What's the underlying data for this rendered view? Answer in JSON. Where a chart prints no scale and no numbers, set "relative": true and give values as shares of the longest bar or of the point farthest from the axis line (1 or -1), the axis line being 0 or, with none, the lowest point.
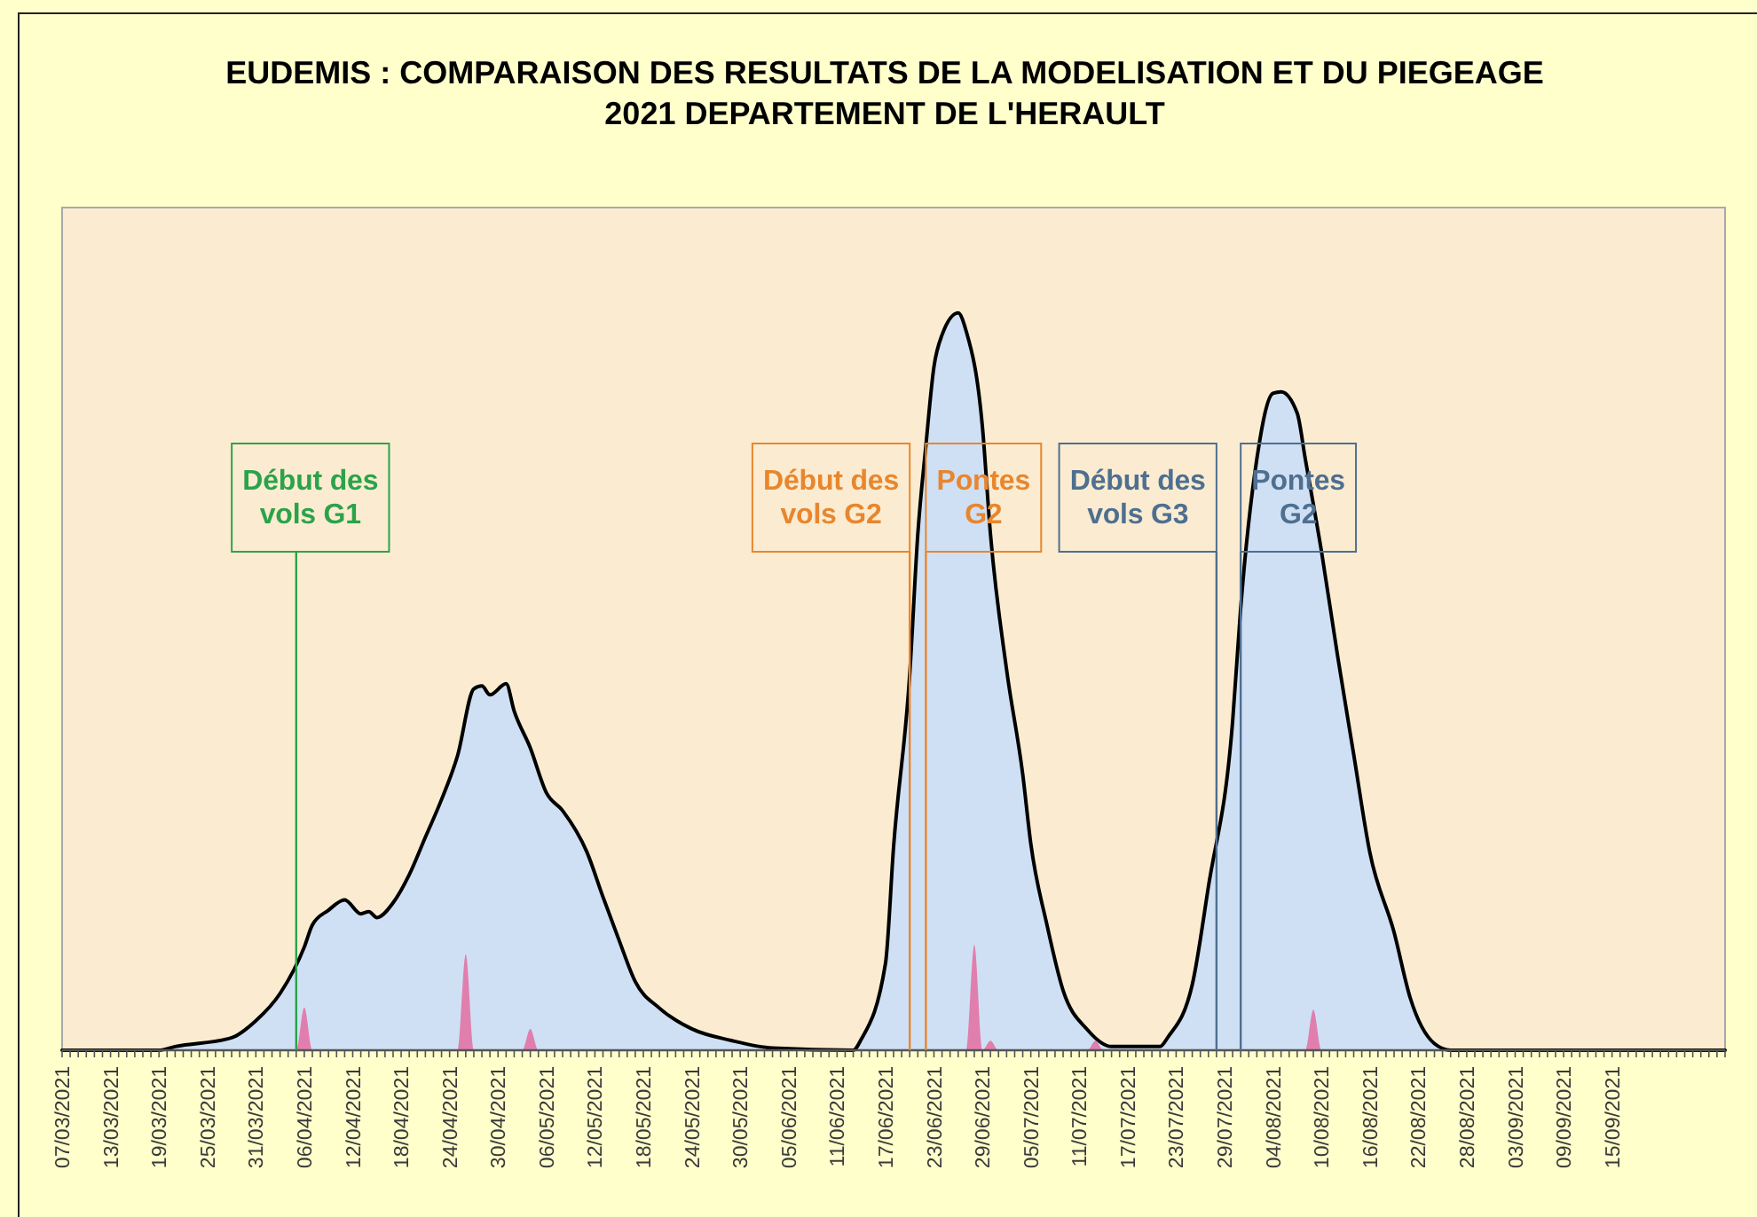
{
  "chart_data": {
    "type": "area",
    "relative": true,
    "title": "EUDEMIS : COMPARAISON DES RESULTATS DE LA MODELISATION ET DU PIEGEAGE",
    "subtitle": "2021 DEPARTEMENT DE L'HERAULT",
    "xlim": [
      "2021-03-07",
      "2021-09-29"
    ],
    "xticks": [
      {
        "value": "2021-03-07",
        "label": "07/03/2021"
      },
      {
        "value": "2021-03-08",
        "label": null
      },
      {
        "value": "2021-03-09",
        "label": null
      },
      {
        "value": "2021-03-10",
        "label": null
      },
      {
        "value": "2021-03-11",
        "label": null
      },
      {
        "value": "2021-03-12",
        "label": null
      },
      {
        "value": "2021-03-13",
        "label": "13/03/2021"
      },
      {
        "value": "2021-03-14",
        "label": null
      },
      {
        "value": "2021-03-15",
        "label": null
      },
      {
        "value": "2021-03-16",
        "label": null
      },
      {
        "value": "2021-03-17",
        "label": null
      },
      {
        "value": "2021-03-18",
        "label": null
      },
      {
        "value": "2021-03-19",
        "label": "19/03/2021"
      },
      {
        "value": "2021-03-20",
        "label": null
      },
      {
        "value": "2021-03-21",
        "label": null
      },
      {
        "value": "2021-03-22",
        "label": null
      },
      {
        "value": "2021-03-23",
        "label": null
      },
      {
        "value": "2021-03-24",
        "label": null
      },
      {
        "value": "2021-03-25",
        "label": "25/03/2021"
      },
      {
        "value": "2021-03-26",
        "label": null
      },
      {
        "value": "2021-03-27",
        "label": null
      },
      {
        "value": "2021-03-28",
        "label": null
      },
      {
        "value": "2021-03-29",
        "label": null
      },
      {
        "value": "2021-03-30",
        "label": null
      },
      {
        "value": "2021-03-31",
        "label": "31/03/2021"
      },
      {
        "value": "2021-04-01",
        "label": null
      },
      {
        "value": "2021-04-02",
        "label": null
      },
      {
        "value": "2021-04-03",
        "label": null
      },
      {
        "value": "2021-04-04",
        "label": null
      },
      {
        "value": "2021-04-05",
        "label": null
      },
      {
        "value": "2021-04-06",
        "label": "06/04/2021"
      },
      {
        "value": "2021-04-07",
        "label": null
      },
      {
        "value": "2021-04-08",
        "label": null
      },
      {
        "value": "2021-04-09",
        "label": null
      },
      {
        "value": "2021-04-10",
        "label": null
      },
      {
        "value": "2021-04-11",
        "label": null
      },
      {
        "value": "2021-04-12",
        "label": "12/04/2021"
      },
      {
        "value": "2021-04-13",
        "label": null
      },
      {
        "value": "2021-04-14",
        "label": null
      },
      {
        "value": "2021-04-15",
        "label": null
      },
      {
        "value": "2021-04-16",
        "label": null
      },
      {
        "value": "2021-04-17",
        "label": null
      },
      {
        "value": "2021-04-18",
        "label": "18/04/2021"
      },
      {
        "value": "2021-04-19",
        "label": null
      },
      {
        "value": "2021-04-20",
        "label": null
      },
      {
        "value": "2021-04-21",
        "label": null
      },
      {
        "value": "2021-04-22",
        "label": null
      },
      {
        "value": "2021-04-23",
        "label": null
      },
      {
        "value": "2021-04-24",
        "label": "24/04/2021"
      },
      {
        "value": "2021-04-25",
        "label": null
      },
      {
        "value": "2021-04-26",
        "label": null
      },
      {
        "value": "2021-04-27",
        "label": null
      },
      {
        "value": "2021-04-28",
        "label": null
      },
      {
        "value": "2021-04-29",
        "label": null
      },
      {
        "value": "2021-04-30",
        "label": "30/04/2021"
      },
      {
        "value": "2021-05-01",
        "label": null
      },
      {
        "value": "2021-05-02",
        "label": null
      },
      {
        "value": "2021-05-03",
        "label": null
      },
      {
        "value": "2021-05-04",
        "label": null
      },
      {
        "value": "2021-05-05",
        "label": null
      },
      {
        "value": "2021-05-06",
        "label": "06/05/2021"
      },
      {
        "value": "2021-05-07",
        "label": null
      },
      {
        "value": "2021-05-08",
        "label": null
      },
      {
        "value": "2021-05-09",
        "label": null
      },
      {
        "value": "2021-05-10",
        "label": null
      },
      {
        "value": "2021-05-11",
        "label": null
      },
      {
        "value": "2021-05-12",
        "label": "12/05/2021"
      },
      {
        "value": "2021-05-13",
        "label": null
      },
      {
        "value": "2021-05-14",
        "label": null
      },
      {
        "value": "2021-05-15",
        "label": null
      },
      {
        "value": "2021-05-16",
        "label": null
      },
      {
        "value": "2021-05-17",
        "label": null
      },
      {
        "value": "2021-05-18",
        "label": "18/05/2021"
      },
      {
        "value": "2021-05-19",
        "label": null
      },
      {
        "value": "2021-05-20",
        "label": null
      },
      {
        "value": "2021-05-21",
        "label": null
      },
      {
        "value": "2021-05-22",
        "label": null
      },
      {
        "value": "2021-05-23",
        "label": null
      },
      {
        "value": "2021-05-24",
        "label": "24/05/2021"
      },
      {
        "value": "2021-05-25",
        "label": null
      },
      {
        "value": "2021-05-26",
        "label": null
      },
      {
        "value": "2021-05-27",
        "label": null
      },
      {
        "value": "2021-05-28",
        "label": null
      },
      {
        "value": "2021-05-29",
        "label": null
      },
      {
        "value": "2021-05-30",
        "label": "30/05/2021"
      },
      {
        "value": "2021-05-31",
        "label": null
      },
      {
        "value": "2021-06-01",
        "label": null
      },
      {
        "value": "2021-06-02",
        "label": null
      },
      {
        "value": "2021-06-03",
        "label": null
      },
      {
        "value": "2021-06-04",
        "label": null
      },
      {
        "value": "2021-06-05",
        "label": "05/06/2021"
      },
      {
        "value": "2021-06-06",
        "label": null
      },
      {
        "value": "2021-06-07",
        "label": null
      },
      {
        "value": "2021-06-08",
        "label": null
      },
      {
        "value": "2021-06-09",
        "label": null
      },
      {
        "value": "2021-06-10",
        "label": null
      },
      {
        "value": "2021-06-11",
        "label": "11/06/2021"
      },
      {
        "value": "2021-06-12",
        "label": null
      },
      {
        "value": "2021-06-13",
        "label": null
      },
      {
        "value": "2021-06-14",
        "label": null
      },
      {
        "value": "2021-06-15",
        "label": null
      },
      {
        "value": "2021-06-16",
        "label": null
      },
      {
        "value": "2021-06-17",
        "label": "17/06/2021"
      },
      {
        "value": "2021-06-18",
        "label": null
      },
      {
        "value": "2021-06-19",
        "label": null
      },
      {
        "value": "2021-06-20",
        "label": null
      },
      {
        "value": "2021-06-21",
        "label": null
      },
      {
        "value": "2021-06-22",
        "label": null
      },
      {
        "value": "2021-06-23",
        "label": "23/06/2021"
      },
      {
        "value": "2021-06-24",
        "label": null
      },
      {
        "value": "2021-06-25",
        "label": null
      },
      {
        "value": "2021-06-26",
        "label": null
      },
      {
        "value": "2021-06-27",
        "label": null
      },
      {
        "value": "2021-06-28",
        "label": null
      },
      {
        "value": "2021-06-29",
        "label": "29/06/2021"
      },
      {
        "value": "2021-06-30",
        "label": null
      },
      {
        "value": "2021-07-01",
        "label": null
      },
      {
        "value": "2021-07-02",
        "label": null
      },
      {
        "value": "2021-07-03",
        "label": null
      },
      {
        "value": "2021-07-04",
        "label": null
      },
      {
        "value": "2021-07-05",
        "label": "05/07/2021"
      },
      {
        "value": "2021-07-06",
        "label": null
      },
      {
        "value": "2021-07-07",
        "label": null
      },
      {
        "value": "2021-07-08",
        "label": null
      },
      {
        "value": "2021-07-09",
        "label": null
      },
      {
        "value": "2021-07-10",
        "label": null
      },
      {
        "value": "2021-07-11",
        "label": "11/07/2021"
      },
      {
        "value": "2021-07-12",
        "label": null
      },
      {
        "value": "2021-07-13",
        "label": null
      },
      {
        "value": "2021-07-14",
        "label": null
      },
      {
        "value": "2021-07-15",
        "label": null
      },
      {
        "value": "2021-07-16",
        "label": null
      },
      {
        "value": "2021-07-17",
        "label": "17/07/2021"
      },
      {
        "value": "2021-07-18",
        "label": null
      },
      {
        "value": "2021-07-19",
        "label": null
      },
      {
        "value": "2021-07-20",
        "label": null
      },
      {
        "value": "2021-07-21",
        "label": null
      },
      {
        "value": "2021-07-22",
        "label": null
      },
      {
        "value": "2021-07-23",
        "label": "23/07/2021"
      },
      {
        "value": "2021-07-24",
        "label": null
      },
      {
        "value": "2021-07-25",
        "label": null
      },
      {
        "value": "2021-07-26",
        "label": null
      },
      {
        "value": "2021-07-27",
        "label": null
      },
      {
        "value": "2021-07-28",
        "label": null
      },
      {
        "value": "2021-07-29",
        "label": "29/07/2021"
      },
      {
        "value": "2021-07-30",
        "label": null
      },
      {
        "value": "2021-07-31",
        "label": null
      },
      {
        "value": "2021-08-01",
        "label": null
      },
      {
        "value": "2021-08-02",
        "label": null
      },
      {
        "value": "2021-08-03",
        "label": null
      },
      {
        "value": "2021-08-04",
        "label": "04/08/2021"
      },
      {
        "value": "2021-08-05",
        "label": null
      },
      {
        "value": "2021-08-06",
        "label": null
      },
      {
        "value": "2021-08-07",
        "label": null
      },
      {
        "value": "2021-08-08",
        "label": null
      },
      {
        "value": "2021-08-09",
        "label": null
      },
      {
        "value": "2021-08-10",
        "label": "10/08/2021"
      },
      {
        "value": "2021-08-11",
        "label": null
      },
      {
        "value": "2021-08-12",
        "label": null
      },
      {
        "value": "2021-08-13",
        "label": null
      },
      {
        "value": "2021-08-14",
        "label": null
      },
      {
        "value": "2021-08-15",
        "label": null
      },
      {
        "value": "2021-08-16",
        "label": "16/08/2021"
      },
      {
        "value": "2021-08-17",
        "label": null
      },
      {
        "value": "2021-08-18",
        "label": null
      },
      {
        "value": "2021-08-19",
        "label": null
      },
      {
        "value": "2021-08-20",
        "label": null
      },
      {
        "value": "2021-08-21",
        "label": null
      },
      {
        "value": "2021-08-22",
        "label": "22/08/2021"
      },
      {
        "value": "2021-08-23",
        "label": null
      },
      {
        "value": "2021-08-24",
        "label": null
      },
      {
        "value": "2021-08-25",
        "label": null
      },
      {
        "value": "2021-08-26",
        "label": null
      },
      {
        "value": "2021-08-27",
        "label": null
      },
      {
        "value": "2021-08-28",
        "label": "28/08/2021"
      },
      {
        "value": "2021-08-29",
        "label": null
      },
      {
        "value": "2021-08-30",
        "label": null
      },
      {
        "value": "2021-08-31",
        "label": null
      },
      {
        "value": "2021-09-01",
        "label": null
      },
      {
        "value": "2021-09-02",
        "label": null
      },
      {
        "value": "2021-09-03",
        "label": "03/09/2021"
      },
      {
        "value": "2021-09-04",
        "label": null
      },
      {
        "value": "2021-09-05",
        "label": null
      },
      {
        "value": "2021-09-06",
        "label": null
      },
      {
        "value": "2021-09-07",
        "label": null
      },
      {
        "value": "2021-09-08",
        "label": null
      },
      {
        "value": "2021-09-09",
        "label": "09/09/2021"
      },
      {
        "value": "2021-09-10",
        "label": null
      },
      {
        "value": "2021-09-11",
        "label": null
      },
      {
        "value": "2021-09-12",
        "label": null
      },
      {
        "value": "2021-09-13",
        "label": null
      },
      {
        "value": "2021-09-14",
        "label": null
      },
      {
        "value": "2021-09-15",
        "label": "15/09/2021"
      },
      {
        "value": "2021-09-16",
        "label": null
      },
      {
        "value": "2021-09-17",
        "label": null
      },
      {
        "value": "2021-09-18",
        "label": null
      },
      {
        "value": "2021-09-19",
        "label": null
      },
      {
        "value": "2021-09-20",
        "label": null
      },
      {
        "value": "2021-09-21",
        "label": null
      },
      {
        "value": "2021-09-22",
        "label": null
      },
      {
        "value": "2021-09-23",
        "label": null
      },
      {
        "value": "2021-09-24",
        "label": null
      },
      {
        "value": "2021-09-25",
        "label": null
      },
      {
        "value": "2021-09-26",
        "label": null
      },
      {
        "value": "2021-09-27",
        "label": null
      },
      {
        "value": "2021-09-28",
        "label": null
      },
      {
        "value": "2021-09-29",
        "label": null
      }
    ],
    "series": [
      {
        "color": "#cfe0f4",
        "line_style": "solid",
        "x": [
          "2021-03-07",
          "2021-03-19",
          "2021-03-21",
          "2021-03-28",
          "2021-03-31",
          "2021-04-03",
          "2021-04-06",
          "2021-04-07",
          "2021-04-09",
          "2021-04-11",
          "2021-04-13",
          "2021-04-14",
          "2021-04-15",
          "2021-04-17",
          "2021-04-19",
          "2021-04-21",
          "2021-04-23",
          "2021-04-25",
          "2021-04-27",
          "2021-04-28",
          "2021-04-29",
          "2021-05-01",
          "2021-05-02",
          "2021-05-04",
          "2021-05-06",
          "2021-05-08",
          "2021-05-11",
          "2021-05-13",
          "2021-05-15",
          "2021-05-17",
          "2021-05-20",
          "2021-05-24",
          "2021-05-29",
          "2021-06-03",
          "2021-06-13",
          "2021-06-14",
          "2021-06-17",
          "2021-06-18",
          "2021-06-20",
          "2021-06-21",
          "2021-06-22",
          "2021-06-23",
          "2021-06-24",
          "2021-06-26",
          "2021-06-27",
          "2021-06-29",
          "2021-06-30",
          "2021-07-02",
          "2021-07-04",
          "2021-07-05",
          "2021-07-07",
          "2021-07-09",
          "2021-07-12",
          "2021-07-15",
          "2021-07-21",
          "2021-07-22",
          "2021-07-25",
          "2021-07-27",
          "2021-07-30",
          "2021-07-31",
          "2021-08-02",
          "2021-08-04",
          "2021-08-05",
          "2021-08-07",
          "2021-08-08",
          "2021-08-10",
          "2021-08-12",
          "2021-08-14",
          "2021-08-16",
          "2021-08-19",
          "2021-08-21",
          "2021-08-24",
          "2021-08-26",
          "2021-09-29"
        ],
        "values": [
          0,
          0,
          0.005,
          0.017,
          0.04,
          0.077,
          0.14,
          0.17,
          0.19,
          0.204,
          0.185,
          0.188,
          0.18,
          0.2,
          0.238,
          0.289,
          0.34,
          0.4,
          0.49,
          0.494,
          0.482,
          0.497,
          0.46,
          0.41,
          0.349,
          0.325,
          0.269,
          0.208,
          0.149,
          0.093,
          0.057,
          0.029,
          0.013,
          0.003,
          0,
          0.015,
          0.118,
          0.276,
          0.51,
          0.7,
          0.82,
          0.927,
          0.97,
          1,
          0.975,
          0.846,
          0.7,
          0.516,
          0.374,
          0.28,
          0.17,
          0.081,
          0.028,
          0.005,
          0.005,
          0.018,
          0.089,
          0.222,
          0.446,
          0.6,
          0.802,
          0.891,
          0.893,
          0.864,
          0.802,
          0.677,
          0.535,
          0.401,
          0.268,
          0.16,
          0.071,
          0.009,
          0,
          0
        ]
      },
      {
        "color": "#e07fae",
        "x": [
          "2021-03-07",
          "2021-04-05",
          "2021-04-06",
          "2021-04-07",
          "2021-04-25",
          "2021-04-26",
          "2021-04-27",
          "2021-05-03",
          "2021-05-04",
          "2021-05-05",
          "2021-06-27",
          "2021-06-28",
          "2021-06-29",
          "2021-06-30",
          "2021-07-01",
          "2021-07-12",
          "2021-07-13",
          "2021-07-14",
          "2021-08-08",
          "2021-08-09",
          "2021-08-10",
          "2021-09-29"
        ],
        "values": [
          0,
          0,
          0.058,
          0,
          0,
          0.13,
          0,
          0,
          0.029,
          0,
          0,
          0.143,
          0,
          0.013,
          0,
          0,
          0.013,
          0,
          0,
          0.055,
          0,
          0
        ]
      }
    ],
    "ref_lines": [
      {
        "axis": "x",
        "value": "2021-04-05",
        "label": "Début des vols G1",
        "color": "#2aa34a"
      },
      {
        "axis": "x",
        "value": "2021-06-20",
        "label": "Début des vols G2",
        "color": "#e8862e"
      },
      {
        "axis": "x",
        "value": "2021-06-22",
        "label": "Pontes G2",
        "color": "#e8862e"
      },
      {
        "axis": "x",
        "value": "2021-07-28",
        "label": "Début des vols G3",
        "color": "#4e6f90"
      },
      {
        "axis": "x",
        "value": "2021-07-31",
        "label": "Pontes G2",
        "color": "#4e6f90"
      }
    ]
  }
}
